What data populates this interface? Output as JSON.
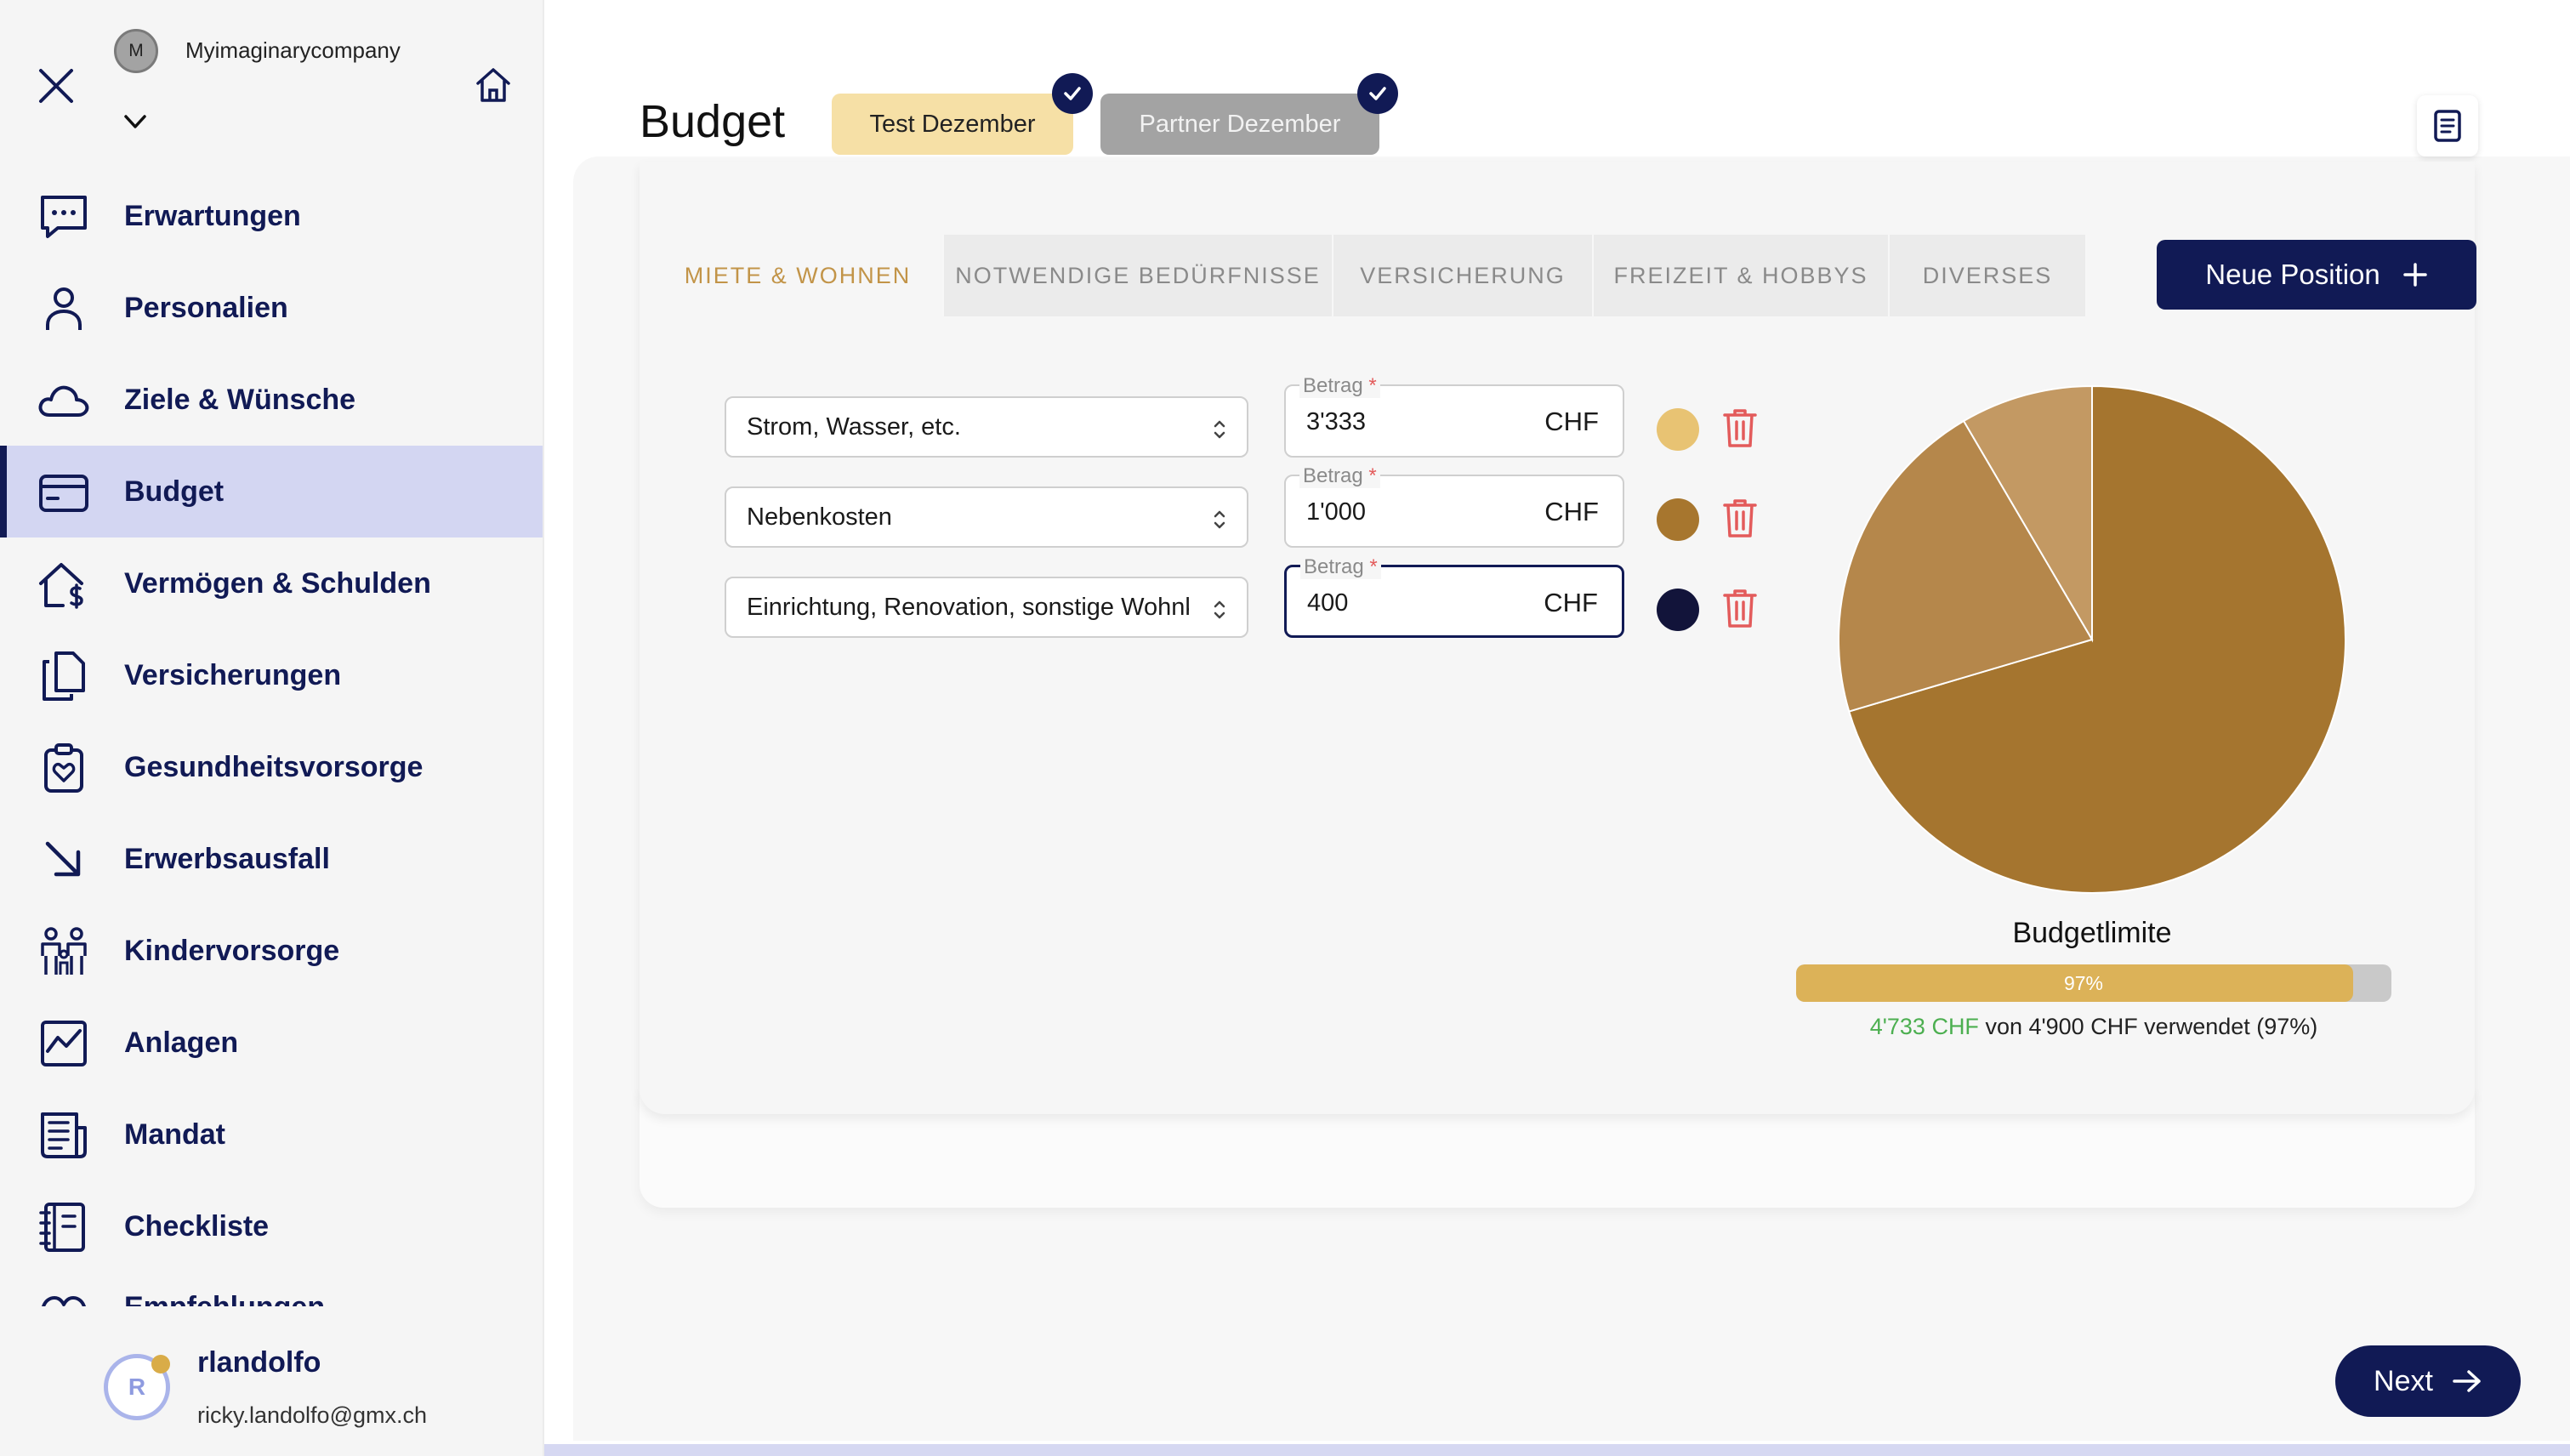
{
  "sidebar": {
    "company_initial": "M",
    "company_name": "Myimaginarycompany",
    "items": [
      {
        "label": "Erwartungen",
        "icon": "chat-icon"
      },
      {
        "label": "Personalien",
        "icon": "person-icon"
      },
      {
        "label": "Ziele & Wünsche",
        "icon": "cloud-icon"
      },
      {
        "label": "Budget",
        "icon": "credit-card-icon",
        "active": true
      },
      {
        "label": "Vermögen & Schulden",
        "icon": "house-dollar-icon"
      },
      {
        "label": "Versicherungen",
        "icon": "documents-icon"
      },
      {
        "label": "Gesundheitsvorsorge",
        "icon": "clipboard-heart-icon"
      },
      {
        "label": "Erwerbsausfall",
        "icon": "arrow-down-right-icon"
      },
      {
        "label": "Kindervorsorge",
        "icon": "family-icon"
      },
      {
        "label": "Anlagen",
        "icon": "chart-icon"
      },
      {
        "label": "Mandat",
        "icon": "newspaper-icon"
      },
      {
        "label": "Checkliste",
        "icon": "notebook-icon"
      },
      {
        "label": "Empfehlungen",
        "icon": "heart-icon"
      }
    ],
    "user": {
      "initial": "R",
      "name": "rlandolfo",
      "email": "ricky.landolfo@gmx.ch"
    }
  },
  "header": {
    "title": "Budget",
    "chips": [
      "Test Dezember",
      "Partner Dezember"
    ]
  },
  "tabs": [
    "MIETE & WOHNEN",
    "NOTWENDIGE BEDÜRFNISSE",
    "VERSICHERUNG",
    "FREIZEIT & HOBBYS",
    "DIVERSES"
  ],
  "new_position_label": "Neue Position",
  "positions": [
    {
      "category": "Strom, Wasser, etc.",
      "amount_label": "Betrag",
      "required_mark": "*",
      "amount": "3'333",
      "currency": "CHF",
      "color": "#e8c373"
    },
    {
      "category": "Nebenkosten",
      "amount_label": "Betrag",
      "required_mark": "*",
      "amount": "1'000",
      "currency": "CHF",
      "color": "#a7762e"
    },
    {
      "category": "Einrichtung, Renovation, sonstige Wohnkosten",
      "amount_label": "Betrag",
      "required_mark": "*",
      "amount": "400",
      "currency": "CHF",
      "color": "#12143a"
    }
  ],
  "chart_data": {
    "type": "pie",
    "values": [
      3333,
      1000,
      400
    ],
    "colors": [
      "#a5752f",
      "#b5874b",
      "#c39963"
    ]
  },
  "budget": {
    "title": "Budgetlimite",
    "percent_label": "97%",
    "percent": 97,
    "used": "4'733 CHF",
    "rest": " von 4'900 CHF verwendet (97%)"
  },
  "next_label": "Next"
}
